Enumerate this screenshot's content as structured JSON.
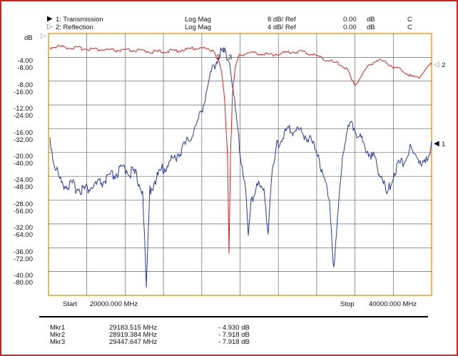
{
  "header": {
    "trace1": {
      "label": "1: Transmission",
      "format": "Log Mag",
      "scale": "8 dB/ Ref",
      "ref_value": "0.00",
      "ref_unit": "dB",
      "flag": "C"
    },
    "trace2": {
      "label": "2: Reflection",
      "format": "Log Mag",
      "scale": "4 dB/ Ref",
      "ref_value": "0.00",
      "ref_unit": "dB",
      "flag": "C"
    }
  },
  "axis": {
    "unit": "dB",
    "left_labels": [
      [
        "-4.00",
        "-8.00"
      ],
      [
        "-8.00",
        "-16.00"
      ],
      [
        "-12.00",
        "-24.00"
      ],
      [
        "-16.00",
        "-32.00"
      ],
      [
        "-20.00",
        "-40.00"
      ],
      [
        "-24.00",
        "-48.00"
      ],
      [
        "-28.00",
        "-56.00"
      ],
      [
        "-32.00",
        "-64.00"
      ],
      [
        "-36.00",
        "-72.00"
      ],
      [
        "-40.00",
        "-80.00"
      ]
    ],
    "start_label": "Start",
    "start_value": "20000.000 MHz",
    "stop_label": "Stop",
    "stop_value": "40000.000 MHz",
    "ref2_marker": "2",
    "ref1_marker": "1"
  },
  "markers_on_plot": {
    "m1": "1",
    "m2": "2",
    "m3": "3"
  },
  "marker_table": [
    {
      "name": "Mkr1",
      "freq": "29183.515 MHz",
      "value": "- 4.930 dB"
    },
    {
      "name": "Mkr2",
      "freq": "28919.384 MHz",
      "value": "- 7.918 dB"
    },
    {
      "name": "Mkr3",
      "freq": "29447.647 MHz",
      "value": "- 7.918 dB"
    }
  ],
  "colors": {
    "transmission": "#2b3aa6",
    "reflection": "#e02020",
    "grid": "#555555",
    "frame": "#d81e1e",
    "plot_border": "#e8a020"
  }
}
